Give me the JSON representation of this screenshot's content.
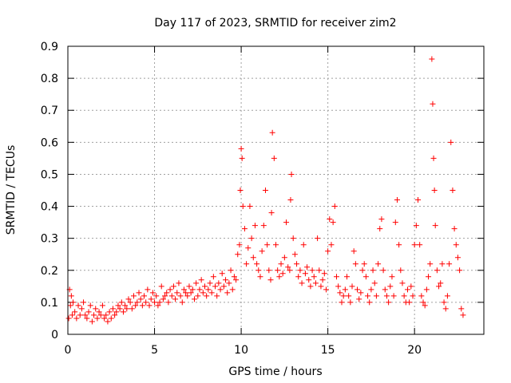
{
  "chart_data": {
    "type": "scatter",
    "title": "Day 117 of 2023, SRMTID for receiver zim2",
    "xlabel": "GPS time / hours",
    "ylabel": "SRMTID / TECUs",
    "xlim": [
      0,
      24
    ],
    "ylim": [
      0,
      0.9
    ],
    "xticks": [
      0,
      5,
      10,
      15,
      20
    ],
    "yticks": [
      0,
      0.1,
      0.2,
      0.3,
      0.4,
      0.5,
      0.6,
      0.7,
      0.8,
      0.9
    ],
    "grid": true,
    "marker": "+",
    "marker_color": "#ff0000",
    "series": [
      {
        "name": "SRMTID",
        "x": [
          0.05,
          0.1,
          0.15,
          0.2,
          0.25,
          0.3,
          0.4,
          0.5,
          0.6,
          0.7,
          0.8,
          0.9,
          1.0,
          1.1,
          1.2,
          1.3,
          1.4,
          1.5,
          1.6,
          1.7,
          1.8,
          1.9,
          2.0,
          2.1,
          2.2,
          2.3,
          2.4,
          2.5,
          2.6,
          2.7,
          2.8,
          2.9,
          3.0,
          3.1,
          3.2,
          3.3,
          3.4,
          3.5,
          3.6,
          3.7,
          3.8,
          3.9,
          4.0,
          4.1,
          4.2,
          4.3,
          4.4,
          4.5,
          4.6,
          4.7,
          4.8,
          4.9,
          5.0,
          5.1,
          5.2,
          5.3,
          5.4,
          5.5,
          5.6,
          5.7,
          5.8,
          5.9,
          6.0,
          6.1,
          6.2,
          6.3,
          6.4,
          6.5,
          6.6,
          6.7,
          6.8,
          6.9,
          7.0,
          7.1,
          7.2,
          7.3,
          7.4,
          7.5,
          7.6,
          7.7,
          7.8,
          7.9,
          8.0,
          8.1,
          8.2,
          8.3,
          8.4,
          8.5,
          8.6,
          8.7,
          8.8,
          8.9,
          9.0,
          9.1,
          9.2,
          9.3,
          9.4,
          9.5,
          9.6,
          9.7,
          9.8,
          9.9,
          9.95,
          10.0,
          10.05,
          10.1,
          10.2,
          10.3,
          10.4,
          10.5,
          10.6,
          10.7,
          10.8,
          10.9,
          11.0,
          11.1,
          11.2,
          11.3,
          11.4,
          11.5,
          11.6,
          11.7,
          11.75,
          11.8,
          11.9,
          12.0,
          12.1,
          12.2,
          12.3,
          12.4,
          12.5,
          12.6,
          12.7,
          12.8,
          12.85,
          12.9,
          13.0,
          13.1,
          13.2,
          13.3,
          13.4,
          13.5,
          13.6,
          13.7,
          13.8,
          13.9,
          14.0,
          14.1,
          14.2,
          14.3,
          14.4,
          14.5,
          14.6,
          14.7,
          14.8,
          14.9,
          15.0,
          15.1,
          15.2,
          15.3,
          15.4,
          15.5,
          15.6,
          15.7,
          15.8,
          15.9,
          16.0,
          16.1,
          16.2,
          16.3,
          16.4,
          16.5,
          16.6,
          16.7,
          16.8,
          16.9,
          17.0,
          17.1,
          17.2,
          17.3,
          17.4,
          17.5,
          17.6,
          17.7,
          17.8,
          17.9,
          18.0,
          18.1,
          18.2,
          18.3,
          18.4,
          18.5,
          18.6,
          18.7,
          18.8,
          18.9,
          19.0,
          19.1,
          19.2,
          19.3,
          19.4,
          19.5,
          19.6,
          19.7,
          19.8,
          19.9,
          20.0,
          20.1,
          20.2,
          20.3,
          20.4,
          20.5,
          20.6,
          20.7,
          20.8,
          20.9,
          21.0,
          21.05,
          21.1,
          21.15,
          21.2,
          21.3,
          21.4,
          21.5,
          21.6,
          21.7,
          21.8,
          21.9,
          22.0,
          22.1,
          22.2,
          22.3,
          22.4,
          22.5,
          22.6,
          22.7,
          22.8
        ],
        "y": [
          0.05,
          0.14,
          0.09,
          0.12,
          0.06,
          0.1,
          0.07,
          0.05,
          0.09,
          0.06,
          0.08,
          0.1,
          0.06,
          0.05,
          0.07,
          0.09,
          0.04,
          0.06,
          0.08,
          0.05,
          0.07,
          0.06,
          0.09,
          0.05,
          0.06,
          0.04,
          0.07,
          0.05,
          0.08,
          0.06,
          0.07,
          0.09,
          0.08,
          0.1,
          0.07,
          0.09,
          0.08,
          0.11,
          0.1,
          0.08,
          0.12,
          0.09,
          0.1,
          0.13,
          0.11,
          0.09,
          0.12,
          0.1,
          0.14,
          0.09,
          0.11,
          0.13,
          0.1,
          0.12,
          0.09,
          0.1,
          0.15,
          0.11,
          0.12,
          0.13,
          0.1,
          0.14,
          0.12,
          0.15,
          0.11,
          0.13,
          0.16,
          0.12,
          0.1,
          0.14,
          0.13,
          0.12,
          0.15,
          0.13,
          0.14,
          0.11,
          0.16,
          0.12,
          0.14,
          0.17,
          0.13,
          0.15,
          0.12,
          0.14,
          0.16,
          0.13,
          0.18,
          0.15,
          0.12,
          0.16,
          0.14,
          0.19,
          0.15,
          0.17,
          0.13,
          0.16,
          0.2,
          0.14,
          0.18,
          0.17,
          0.25,
          0.28,
          0.45,
          0.58,
          0.55,
          0.4,
          0.33,
          0.22,
          0.27,
          0.4,
          0.3,
          0.24,
          0.34,
          0.22,
          0.2,
          0.18,
          0.26,
          0.34,
          0.45,
          0.28,
          0.2,
          0.17,
          0.38,
          0.63,
          0.55,
          0.28,
          0.2,
          0.18,
          0.22,
          0.19,
          0.24,
          0.35,
          0.21,
          0.2,
          0.42,
          0.5,
          0.3,
          0.25,
          0.22,
          0.18,
          0.2,
          0.16,
          0.28,
          0.19,
          0.21,
          0.17,
          0.15,
          0.2,
          0.18,
          0.16,
          0.3,
          0.2,
          0.15,
          0.17,
          0.19,
          0.14,
          0.26,
          0.36,
          0.28,
          0.35,
          0.4,
          0.18,
          0.15,
          0.13,
          0.1,
          0.12,
          0.14,
          0.18,
          0.12,
          0.1,
          0.15,
          0.26,
          0.22,
          0.14,
          0.11,
          0.13,
          0.2,
          0.22,
          0.18,
          0.12,
          0.1,
          0.14,
          0.2,
          0.16,
          0.12,
          0.22,
          0.33,
          0.36,
          0.2,
          0.14,
          0.12,
          0.1,
          0.15,
          0.18,
          0.12,
          0.35,
          0.42,
          0.28,
          0.2,
          0.16,
          0.12,
          0.1,
          0.14,
          0.1,
          0.15,
          0.12,
          0.28,
          0.34,
          0.42,
          0.28,
          0.12,
          0.1,
          0.09,
          0.14,
          0.18,
          0.22,
          0.86,
          0.72,
          0.55,
          0.45,
          0.34,
          0.2,
          0.15,
          0.16,
          0.22,
          0.1,
          0.08,
          0.12,
          0.22,
          0.6,
          0.45,
          0.33,
          0.28,
          0.24,
          0.2,
          0.08,
          0.06
        ]
      }
    ]
  }
}
